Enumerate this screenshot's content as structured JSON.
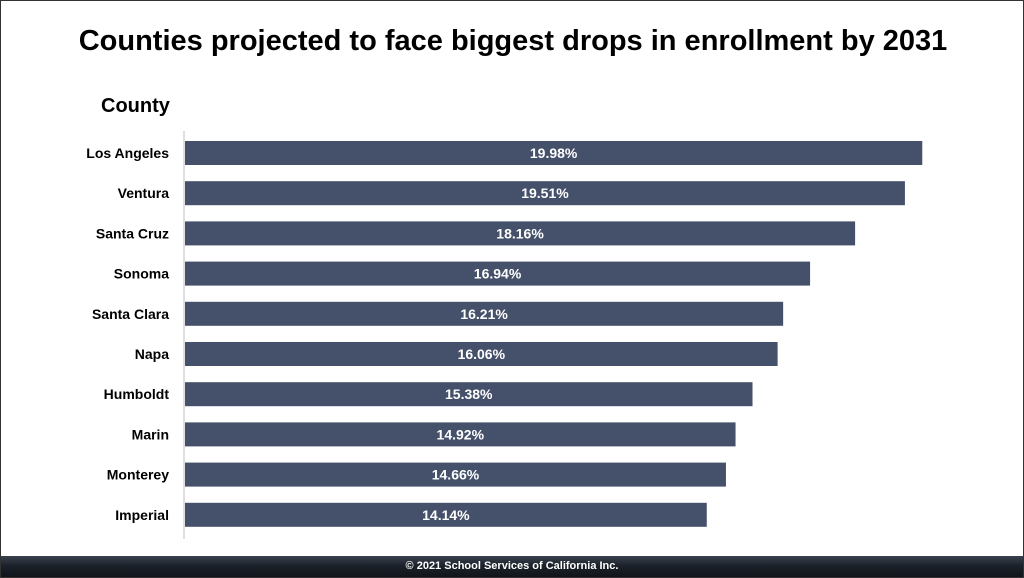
{
  "chart_data": {
    "type": "bar",
    "orientation": "horizontal",
    "title": "Counties projected to face biggest drops in enrollment by 2031",
    "ylabel": "County",
    "categories": [
      "Los Angeles",
      "Ventura",
      "Santa Cruz",
      "Sonoma",
      "Santa Clara",
      "Napa",
      "Humboldt",
      "Marin",
      "Monterey",
      "Imperial"
    ],
    "values": [
      19.98,
      19.51,
      18.16,
      16.94,
      16.21,
      16.06,
      15.38,
      14.92,
      14.66,
      14.14
    ],
    "value_labels": [
      "19.98%",
      "19.51%",
      "18.16%",
      "16.94%",
      "16.21%",
      "16.06%",
      "15.38%",
      "14.92%",
      "14.66%",
      "14.14%"
    ],
    "bar_color": "#45506a",
    "grid": false,
    "legend": "none"
  },
  "footer": {
    "text": "© 2021 School Services of California Inc."
  }
}
